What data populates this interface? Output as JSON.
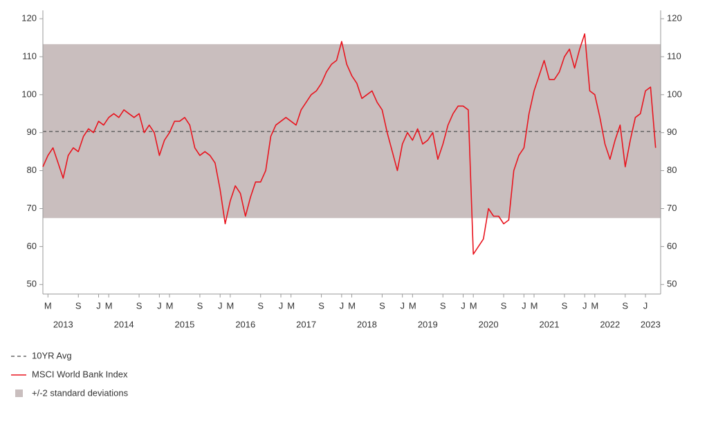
{
  "chart_data": {
    "type": "line",
    "x": [
      "2013-02",
      "2013-03",
      "2013-04",
      "2013-05",
      "2013-06",
      "2013-07",
      "2013-08",
      "2013-09",
      "2013-10",
      "2013-11",
      "2013-12",
      "2014-01",
      "2014-02",
      "2014-03",
      "2014-04",
      "2014-05",
      "2014-06",
      "2014-07",
      "2014-08",
      "2014-09",
      "2014-10",
      "2014-11",
      "2014-12",
      "2015-01",
      "2015-02",
      "2015-03",
      "2015-04",
      "2015-05",
      "2015-06",
      "2015-07",
      "2015-08",
      "2015-09",
      "2015-10",
      "2015-11",
      "2015-12",
      "2016-01",
      "2016-02",
      "2016-03",
      "2016-04",
      "2016-05",
      "2016-06",
      "2016-07",
      "2016-08",
      "2016-09",
      "2016-10",
      "2016-11",
      "2016-12",
      "2017-01",
      "2017-02",
      "2017-03",
      "2017-04",
      "2017-05",
      "2017-06",
      "2017-07",
      "2017-08",
      "2017-09",
      "2017-10",
      "2017-11",
      "2017-12",
      "2018-01",
      "2018-02",
      "2018-03",
      "2018-04",
      "2018-05",
      "2018-06",
      "2018-07",
      "2018-08",
      "2018-09",
      "2018-10",
      "2018-11",
      "2018-12",
      "2019-01",
      "2019-02",
      "2019-03",
      "2019-04",
      "2019-05",
      "2019-06",
      "2019-07",
      "2019-08",
      "2019-09",
      "2019-10",
      "2019-11",
      "2019-12",
      "2020-01",
      "2020-02",
      "2020-03",
      "2020-04",
      "2020-05",
      "2020-06",
      "2020-07",
      "2020-08",
      "2020-09",
      "2020-10",
      "2020-11",
      "2020-12",
      "2021-01",
      "2021-02",
      "2021-03",
      "2021-04",
      "2021-05",
      "2021-06",
      "2021-07",
      "2021-08",
      "2021-09",
      "2021-10",
      "2021-11",
      "2021-12",
      "2022-01",
      "2022-02",
      "2022-03",
      "2022-04",
      "2022-05",
      "2022-06",
      "2022-07",
      "2022-08",
      "2022-09",
      "2022-10",
      "2022-11",
      "2022-12",
      "2023-01",
      "2023-02",
      "2023-03"
    ],
    "series": [
      {
        "name": "MSCI World Bank Index",
        "color": "#e8141e",
        "values": [
          81,
          84,
          86,
          82,
          78,
          84,
          86,
          85,
          89,
          91,
          90,
          93,
          92,
          94,
          95,
          94,
          96,
          95,
          94,
          95,
          90,
          92,
          90,
          84,
          88,
          90,
          93,
          93,
          94,
          92,
          86,
          84,
          85,
          84,
          82,
          75,
          66,
          72,
          76,
          74,
          68,
          73,
          77,
          77,
          80,
          89,
          92,
          93,
          94,
          93,
          92,
          96,
          98,
          100,
          101,
          103,
          106,
          108,
          109,
          114,
          108,
          105,
          103,
          99,
          100,
          101,
          98,
          96,
          90,
          85,
          80,
          87,
          90,
          88,
          91,
          87,
          88,
          90,
          83,
          87,
          92,
          95,
          97,
          97,
          96,
          58,
          60,
          62,
          70,
          68,
          68,
          66,
          67,
          80,
          84,
          86,
          95,
          101,
          105,
          109,
          104,
          104,
          106,
          110,
          112,
          107,
          112,
          116,
          101,
          100,
          94,
          87,
          83,
          88,
          92,
          81,
          88,
          94,
          95,
          101,
          102,
          86
        ]
      }
    ],
    "average": {
      "name": "10YR Avg",
      "value": 90.3,
      "color": "#666666"
    },
    "band": {
      "name": "+/-2 standard deviations",
      "lower": 67.5,
      "upper": 113.3,
      "color": "#c9bebe"
    },
    "xlim": [
      "2013-02",
      "2023-04"
    ],
    "xticks": [
      {
        "value": "2013-03",
        "label": "M"
      },
      {
        "value": "2013-09",
        "label": "S"
      },
      {
        "value": "2014-01",
        "label": "J"
      },
      {
        "value": "2014-03",
        "label": "M"
      },
      {
        "value": "2014-09",
        "label": "S"
      },
      {
        "value": "2015-01",
        "label": "J"
      },
      {
        "value": "2015-03",
        "label": "M"
      },
      {
        "value": "2015-09",
        "label": "S"
      },
      {
        "value": "2016-01",
        "label": "J"
      },
      {
        "value": "2016-03",
        "label": "M"
      },
      {
        "value": "2016-09",
        "label": "S"
      },
      {
        "value": "2017-01",
        "label": "J"
      },
      {
        "value": "2017-03",
        "label": "M"
      },
      {
        "value": "2017-09",
        "label": "S"
      },
      {
        "value": "2018-01",
        "label": "J"
      },
      {
        "value": "2018-03",
        "label": "M"
      },
      {
        "value": "2018-09",
        "label": "S"
      },
      {
        "value": "2019-01",
        "label": "J"
      },
      {
        "value": "2019-03",
        "label": "M"
      },
      {
        "value": "2019-09",
        "label": "S"
      },
      {
        "value": "2020-01",
        "label": "J"
      },
      {
        "value": "2020-03",
        "label": "M"
      },
      {
        "value": "2020-09",
        "label": "S"
      },
      {
        "value": "2021-01",
        "label": "J"
      },
      {
        "value": "2021-03",
        "label": "M"
      },
      {
        "value": "2021-09",
        "label": "S"
      },
      {
        "value": "2022-01",
        "label": "J"
      },
      {
        "value": "2022-03",
        "label": "M"
      },
      {
        "value": "2022-09",
        "label": "S"
      },
      {
        "value": "2023-01",
        "label": "J"
      }
    ],
    "xyears": [
      {
        "value": "2013-06",
        "label": "2013"
      },
      {
        "value": "2014-06",
        "label": "2014"
      },
      {
        "value": "2015-06",
        "label": "2015"
      },
      {
        "value": "2016-06",
        "label": "2016"
      },
      {
        "value": "2017-06",
        "label": "2017"
      },
      {
        "value": "2018-06",
        "label": "2018"
      },
      {
        "value": "2019-06",
        "label": "2019"
      },
      {
        "value": "2020-06",
        "label": "2020"
      },
      {
        "value": "2021-06",
        "label": "2021"
      },
      {
        "value": "2022-06",
        "label": "2022"
      },
      {
        "value": "2023-02",
        "label": "2023"
      }
    ],
    "ylim": [
      47.5,
      122.2
    ],
    "yticks": [
      50,
      60,
      70,
      80,
      90,
      100,
      110,
      120
    ],
    "y2lim": [
      47.5,
      122.2
    ],
    "y2ticks": [
      50,
      60,
      70,
      80,
      90,
      100,
      110,
      120
    ],
    "legend": "bottom-left"
  }
}
